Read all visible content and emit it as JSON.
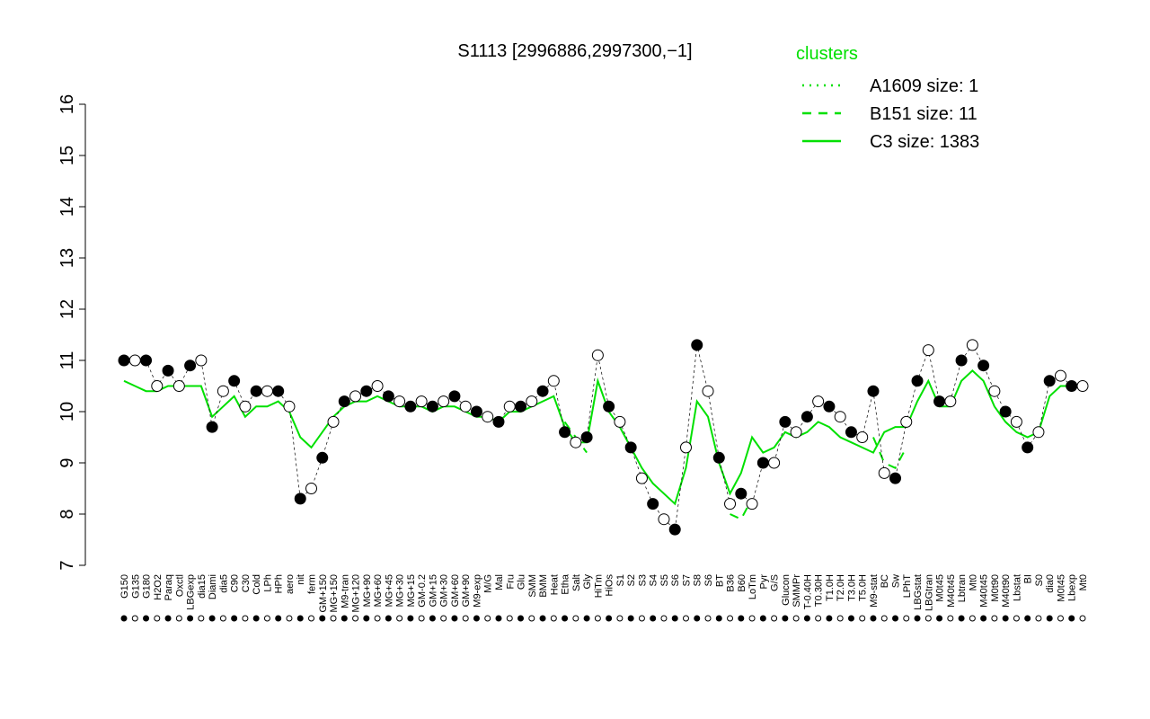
{
  "chart_data": {
    "type": "line",
    "title": "S1113 [2996886,2997300,−1]",
    "legend_title": "clusters",
    "categories": [
      "G150",
      "G135",
      "G180",
      "H2O2",
      "Paraq",
      "Oxctl",
      "LBGexp",
      "dia15",
      "Diami",
      "dia5",
      "C90",
      "C30",
      "Cold",
      "LPh",
      "HPh",
      "aero",
      "nit",
      "ferm",
      "GM+150",
      "MG+150",
      "M9-tran",
      "MG+120",
      "MG+90",
      "MG+60",
      "MG+45",
      "MG+30",
      "MG+15",
      "GM-0.2",
      "GM+15",
      "GM+30",
      "GM+60",
      "GM+90",
      "M9-exp",
      "M/G",
      "Mal",
      "Fru",
      "Glu",
      "SMM",
      "BMM",
      "Heat",
      "Etha",
      "Salt",
      "Gly",
      "HiTm",
      "HiOs",
      "S1",
      "S2",
      "S3",
      "S4",
      "S5",
      "S6",
      "S7",
      "S8",
      "S6",
      "BT",
      "B36",
      "B60",
      "LoTm",
      "Pyr",
      "G/S",
      "Glucon",
      "SMMPr",
      "T-0.40H",
      "T0.30H",
      "T1.0H",
      "T2.0H",
      "T3.0H",
      "T5.0H",
      "M9-stat",
      "BC",
      "Sw",
      "LPhT",
      "LBGstat",
      "LBGtran",
      "M0t45",
      "M40t45",
      "Lbtran",
      "Mt0",
      "M40t45",
      "M0t90",
      "M40t90",
      "Lbstat",
      "BI",
      "S0",
      "dia0",
      "M0t45",
      "Lbexp",
      "Mt0"
    ],
    "values": [
      11.0,
      11.0,
      11.0,
      10.5,
      10.8,
      10.5,
      10.9,
      11.0,
      9.7,
      10.4,
      10.6,
      10.1,
      10.4,
      10.4,
      10.4,
      10.1,
      8.3,
      8.5,
      9.1,
      9.8,
      10.2,
      10.3,
      10.4,
      10.5,
      10.3,
      10.2,
      10.1,
      10.2,
      10.1,
      10.2,
      10.3,
      10.1,
      10.0,
      9.9,
      9.8,
      10.1,
      10.1,
      10.2,
      10.4,
      10.6,
      9.6,
      9.4,
      9.5,
      11.1,
      10.1,
      9.8,
      9.3,
      8.7,
      8.2,
      7.9,
      7.7,
      9.3,
      11.3,
      10.4,
      9.1,
      8.2,
      8.4,
      8.2,
      9.0,
      9.0,
      9.8,
      9.6,
      9.9,
      10.2,
      10.1,
      9.9,
      9.6,
      9.5,
      10.4,
      8.8,
      8.7,
      9.8,
      10.6,
      11.2,
      10.2,
      10.2,
      11.0,
      11.3,
      10.9,
      10.4,
      10.0,
      9.8,
      9.3,
      9.6,
      10.6,
      10.7,
      10.5,
      10.5
    ],
    "point_color": "#000000",
    "series": [
      {
        "name": "A1609 size: 1",
        "color": "#00e000",
        "dash": "dotted",
        "values": [
          null,
          null,
          null,
          null,
          null,
          null,
          null,
          null,
          null,
          null,
          null,
          null,
          null,
          null,
          null,
          null,
          null,
          null,
          null,
          null,
          null,
          null,
          null,
          null,
          null,
          null,
          null,
          null,
          null,
          null,
          null,
          null,
          null,
          null,
          null,
          null,
          null,
          null,
          null,
          null,
          null,
          null,
          null,
          null,
          null,
          null,
          null,
          null,
          null,
          null,
          null,
          null,
          null,
          null,
          null,
          null,
          null,
          null,
          null,
          null,
          null,
          null,
          null,
          null,
          null,
          null,
          null,
          null,
          null,
          null,
          null,
          null,
          null,
          null,
          null,
          null,
          null,
          null,
          null,
          null,
          null,
          null,
          null,
          null,
          null,
          null,
          null,
          null
        ]
      },
      {
        "name": "B151 size: 11",
        "color": "#00e000",
        "dash": "dashed",
        "values": [
          null,
          null,
          null,
          null,
          null,
          null,
          null,
          null,
          null,
          null,
          null,
          null,
          null,
          null,
          null,
          null,
          null,
          null,
          null,
          null,
          null,
          null,
          null,
          null,
          null,
          null,
          null,
          null,
          null,
          null,
          null,
          null,
          null,
          null,
          null,
          null,
          null,
          null,
          null,
          null,
          9.8,
          9.5,
          9.2,
          null,
          null,
          null,
          null,
          null,
          null,
          null,
          null,
          null,
          null,
          null,
          null,
          8.0,
          7.9,
          8.3,
          null,
          null,
          null,
          null,
          null,
          null,
          null,
          null,
          null,
          null,
          9.5,
          9.0,
          8.9,
          9.3,
          null,
          null,
          null,
          null,
          null,
          null,
          null,
          null,
          null,
          null,
          null,
          null,
          null,
          null,
          null,
          null
        ]
      },
      {
        "name": "C3 size: 1383",
        "color": "#00e000",
        "dash": "solid",
        "values": [
          10.6,
          10.5,
          10.4,
          10.4,
          10.5,
          10.5,
          10.5,
          10.5,
          9.9,
          10.1,
          10.3,
          9.9,
          10.1,
          10.1,
          10.2,
          10.0,
          9.5,
          9.3,
          9.6,
          9.9,
          10.1,
          10.2,
          10.2,
          10.3,
          10.2,
          10.1,
          10.1,
          10.1,
          10.0,
          10.1,
          10.1,
          10.0,
          9.9,
          9.9,
          9.8,
          10.0,
          10.0,
          10.1,
          10.2,
          10.3,
          9.7,
          9.4,
          9.4,
          10.6,
          10.0,
          9.7,
          9.3,
          8.9,
          8.6,
          8.4,
          8.2,
          8.9,
          10.2,
          9.9,
          9.0,
          8.4,
          8.8,
          9.5,
          9.2,
          9.3,
          9.6,
          9.5,
          9.6,
          9.8,
          9.7,
          9.5,
          9.4,
          9.3,
          9.2,
          9.6,
          9.7,
          9.7,
          10.2,
          10.6,
          10.1,
          10.1,
          10.6,
          10.8,
          10.6,
          10.1,
          9.8,
          9.6,
          9.5,
          9.6,
          10.3,
          10.5,
          10.5,
          10.5
        ]
      }
    ],
    "ylim": [
      7,
      16
    ],
    "yticks": [
      7,
      8,
      9,
      10,
      11,
      12,
      13,
      14,
      15,
      16
    ]
  }
}
